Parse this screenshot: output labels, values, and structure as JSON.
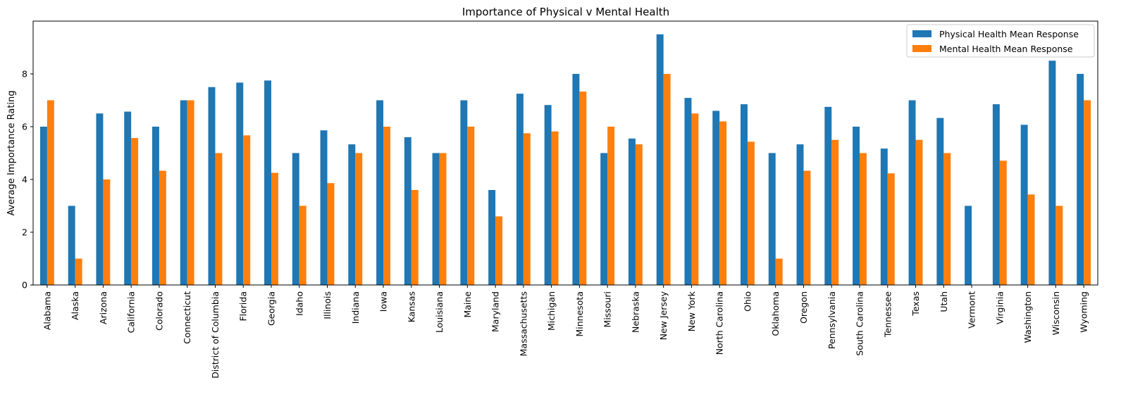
{
  "chart_data": {
    "type": "bar",
    "title": "Importance of Physical v Mental Health",
    "xlabel": "",
    "ylabel": "Average Importance Rating",
    "ylim": [
      0,
      10
    ],
    "yticks": [
      0,
      2,
      4,
      6,
      8
    ],
    "grid": false,
    "legend_position": "top-right",
    "categories": [
      "Alabama",
      "Alaska",
      "Arizona",
      "California",
      "Colorado",
      "Connecticut",
      "District of Columbia",
      "Florida",
      "Georgia",
      "Idaho",
      "Illinois",
      "Indiana",
      "Iowa",
      "Kansas",
      "Louisiana",
      "Maine",
      "Maryland",
      "Massachusetts",
      "Michigan",
      "Minnesota",
      "Missouri",
      "Nebraska",
      "New Jersey",
      "New York",
      "North Carolina",
      "Ohio",
      "Oklahoma",
      "Oregon",
      "Pennsylvania",
      "South Carolina",
      "Tennessee",
      "Texas",
      "Utah",
      "Vermont",
      "Virginia",
      "Washington",
      "Wisconsin",
      "Wyoming"
    ],
    "series": [
      {
        "name": "Physical Health Mean Response",
        "color": "#1f77b4",
        "values": [
          6.0,
          3.0,
          6.5,
          6.57,
          6.0,
          7.0,
          7.5,
          7.67,
          7.75,
          5.0,
          5.86,
          5.33,
          7.0,
          5.6,
          5.0,
          7.0,
          3.6,
          7.25,
          6.82,
          8.0,
          5.0,
          5.55,
          9.5,
          7.09,
          6.6,
          6.85,
          5.0,
          5.33,
          6.75,
          6.0,
          5.17,
          7.0,
          6.33,
          3.0,
          6.85,
          6.07,
          8.5,
          8.0
        ]
      },
      {
        "name": "Mental Health Mean Response",
        "color": "#ff7f0e",
        "values": [
          7.0,
          1.0,
          4.0,
          5.57,
          4.33,
          7.0,
          5.0,
          5.67,
          4.25,
          3.0,
          3.86,
          5.0,
          6.0,
          3.6,
          5.0,
          6.0,
          2.6,
          5.75,
          5.82,
          7.33,
          6.0,
          5.33,
          8.0,
          6.5,
          6.2,
          5.43,
          1.0,
          4.33,
          5.5,
          5.0,
          4.23,
          5.5,
          5.0,
          0,
          4.71,
          3.43,
          3.0,
          7.0
        ]
      }
    ]
  }
}
